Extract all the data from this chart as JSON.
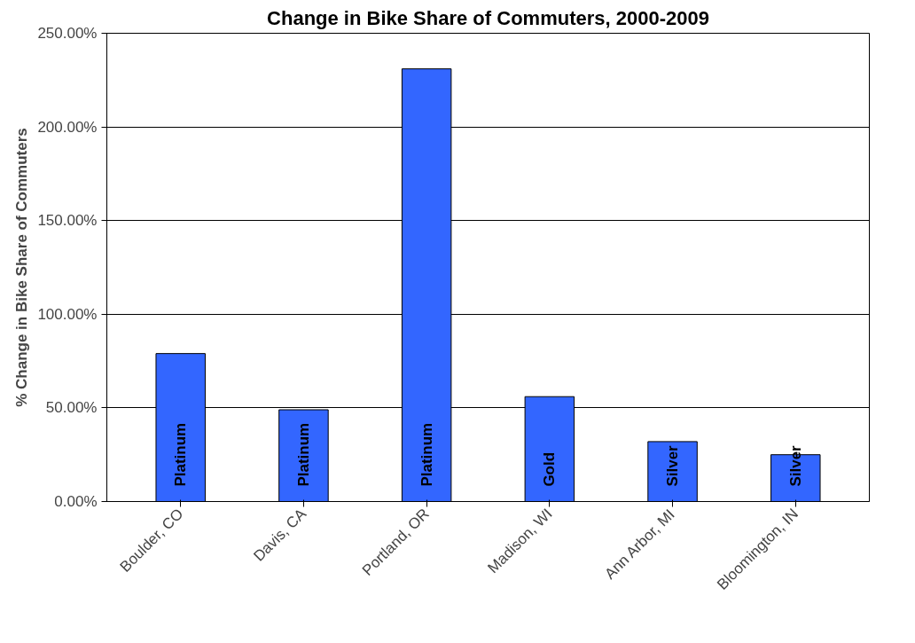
{
  "chart_data": {
    "type": "bar",
    "title": "Change in Bike Share of Commuters, 2000-2009",
    "ylabel": "% Change in Bike Share of Commuters",
    "categories": [
      "Boulder, CO",
      "Davis, CA",
      "Portland, OR",
      "Madison, WI",
      "Ann Arbor, MI",
      "Bloomington, IN"
    ],
    "values": [
      79,
      49,
      231,
      56,
      32,
      25
    ],
    "value_labels": [
      "Platinum",
      "Platinum",
      "Platinum",
      "Gold",
      "Silver",
      "Silver"
    ],
    "color": "#3366ff",
    "ylim": [
      0,
      250
    ],
    "yticks": [
      {
        "value": 0,
        "label": "0.00%"
      },
      {
        "value": 50,
        "label": "50.00%"
      },
      {
        "value": 100,
        "label": "100.00%"
      },
      {
        "value": 150,
        "label": "150.00%"
      },
      {
        "value": 200,
        "label": "200.00%"
      },
      {
        "value": 250,
        "label": "250.00%"
      }
    ],
    "grid": "y"
  }
}
